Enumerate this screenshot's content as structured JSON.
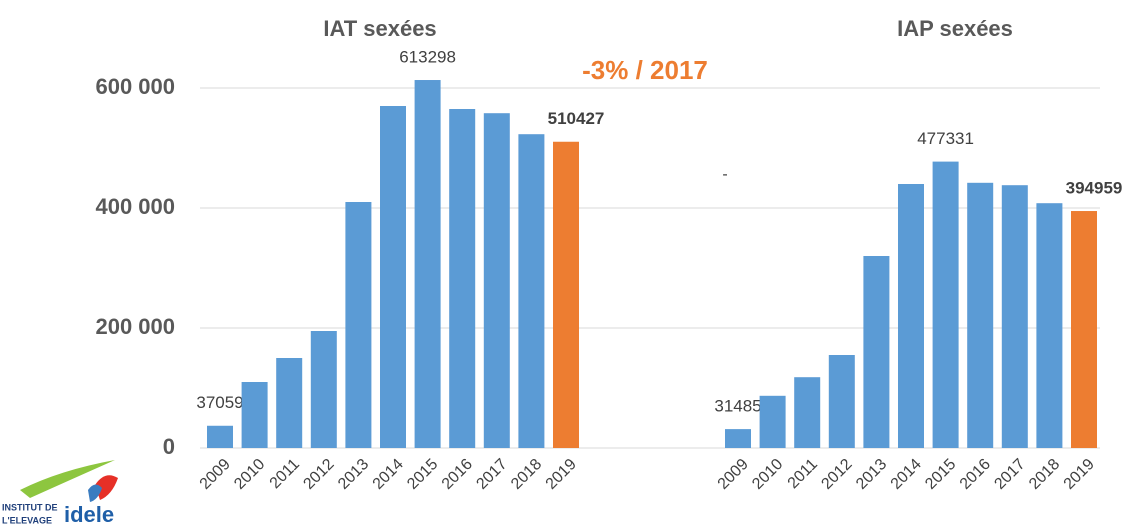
{
  "chart_data": [
    {
      "type": "bar",
      "title": "IAT sexées",
      "categories": [
        "2009",
        "2010",
        "2011",
        "2012",
        "2013",
        "2014",
        "2015",
        "2016",
        "2017",
        "2018",
        "2019"
      ],
      "values": [
        37059,
        110000,
        150000,
        195000,
        410000,
        570000,
        613298,
        565000,
        558000,
        523000,
        510427
      ],
      "colors": [
        "#5b9bd5",
        "#5b9bd5",
        "#5b9bd5",
        "#5b9bd5",
        "#5b9bd5",
        "#5b9bd5",
        "#5b9bd5",
        "#5b9bd5",
        "#5b9bd5",
        "#5b9bd5",
        "#ed7d31"
      ],
      "labeled": [
        0,
        6,
        10
      ],
      "ylim": [
        0,
        600000
      ],
      "yticks": [
        0,
        {
          "value": 200000,
          "label": "200 000"
        },
        {
          "value": 400000,
          "label": "400 000"
        },
        {
          "value": 600000,
          "label": "600 000"
        }
      ],
      "grid": true,
      "annotation": "-3% / 2017"
    },
    {
      "type": "bar",
      "title": "IAP sexées",
      "categories": [
        "2009",
        "2010",
        "2011",
        "2012",
        "2013",
        "2014",
        "2015",
        "2016",
        "2017",
        "2018",
        "2019"
      ],
      "values": [
        31485,
        87000,
        118000,
        155000,
        320000,
        440000,
        477331,
        442000,
        438000,
        408000,
        394959
      ],
      "colors": [
        "#5b9bd5",
        "#5b9bd5",
        "#5b9bd5",
        "#5b9bd5",
        "#5b9bd5",
        "#5b9bd5",
        "#5b9bd5",
        "#5b9bd5",
        "#5b9bd5",
        "#5b9bd5",
        "#ed7d31"
      ],
      "labeled": [
        0,
        6,
        10
      ],
      "ylim": [
        0,
        600000
      ],
      "annotation": "-"
    }
  ],
  "logo": {
    "line1": "INSTITUT DE",
    "line2": "L'ELEVAGE",
    "brand": "idele"
  }
}
